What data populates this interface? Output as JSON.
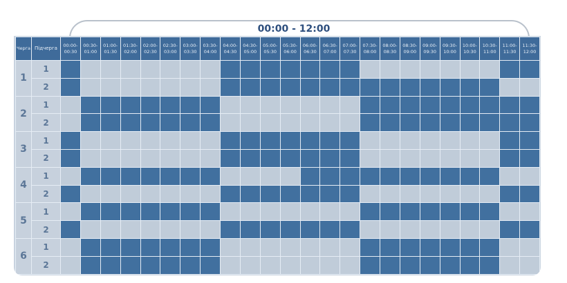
{
  "title": "00:00 - 12:00",
  "headers": {
    "queue": "Черга",
    "subqueue": "Підчерга"
  },
  "time_slots": [
    "00:00-00:30",
    "00:30-01:00",
    "01:00-01:30",
    "01:30-02:00",
    "02:00-02:30",
    "02:30-03:00",
    "03:00-03:30",
    "03:30-04:00",
    "04:00-04:30",
    "04:30-05:00",
    "05:00-05:30",
    "05:30-06:00",
    "06:00-06:30",
    "06:30-07:00",
    "07:00-07:30",
    "07:30-08:00",
    "08:00-08:30",
    "08:30-09:00",
    "09:00-09:30",
    "09:30-10:00",
    "10:00-10:30",
    "10:30-11:00",
    "11:00-11:30",
    "11:30-12:00"
  ],
  "colors": {
    "outage": "#41709f",
    "power_on": "#c0ccd9",
    "header": "#3f6b9a"
  },
  "queues": [
    {
      "label": "1",
      "subqueues": [
        {
          "label": "1",
          "slots": [
            1,
            0,
            0,
            0,
            0,
            0,
            0,
            0,
            1,
            1,
            1,
            1,
            1,
            1,
            1,
            0,
            0,
            0,
            0,
            0,
            0,
            0,
            1,
            1
          ]
        },
        {
          "label": "2",
          "slots": [
            1,
            0,
            0,
            0,
            0,
            0,
            0,
            0,
            1,
            1,
            1,
            1,
            1,
            1,
            1,
            1,
            1,
            1,
            1,
            1,
            1,
            1,
            0,
            0
          ]
        }
      ]
    },
    {
      "label": "2",
      "subqueues": [
        {
          "label": "1",
          "slots": [
            0,
            1,
            1,
            1,
            1,
            1,
            1,
            1,
            0,
            0,
            0,
            0,
            0,
            0,
            0,
            1,
            1,
            1,
            1,
            1,
            1,
            1,
            1,
            1
          ]
        },
        {
          "label": "2",
          "slots": [
            0,
            1,
            1,
            1,
            1,
            1,
            1,
            1,
            0,
            0,
            0,
            0,
            0,
            0,
            0,
            1,
            1,
            1,
            1,
            1,
            1,
            1,
            1,
            1
          ]
        }
      ]
    },
    {
      "label": "3",
      "subqueues": [
        {
          "label": "1",
          "slots": [
            1,
            0,
            0,
            0,
            0,
            0,
            0,
            0,
            1,
            1,
            1,
            1,
            1,
            1,
            1,
            0,
            0,
            0,
            0,
            0,
            0,
            0,
            1,
            1
          ]
        },
        {
          "label": "2",
          "slots": [
            1,
            0,
            0,
            0,
            0,
            0,
            0,
            0,
            1,
            1,
            1,
            1,
            1,
            1,
            1,
            0,
            0,
            0,
            0,
            0,
            0,
            0,
            1,
            1
          ]
        }
      ]
    },
    {
      "label": "4",
      "subqueues": [
        {
          "label": "1",
          "slots": [
            0,
            1,
            1,
            1,
            1,
            1,
            1,
            1,
            0,
            0,
            0,
            0,
            1,
            1,
            1,
            1,
            1,
            1,
            1,
            1,
            1,
            1,
            0,
            0
          ]
        },
        {
          "label": "2",
          "slots": [
            1,
            0,
            0,
            0,
            0,
            0,
            0,
            0,
            1,
            1,
            1,
            1,
            1,
            1,
            1,
            0,
            0,
            0,
            0,
            0,
            0,
            0,
            1,
            1
          ]
        }
      ]
    },
    {
      "label": "5",
      "subqueues": [
        {
          "label": "1",
          "slots": [
            0,
            1,
            1,
            1,
            1,
            1,
            1,
            1,
            0,
            0,
            0,
            0,
            0,
            0,
            0,
            1,
            1,
            1,
            1,
            1,
            1,
            1,
            0,
            0
          ]
        },
        {
          "label": "2",
          "slots": [
            1,
            0,
            0,
            0,
            0,
            0,
            0,
            0,
            1,
            1,
            1,
            1,
            1,
            1,
            1,
            0,
            0,
            0,
            0,
            0,
            0,
            0,
            1,
            1
          ]
        }
      ]
    },
    {
      "label": "6",
      "subqueues": [
        {
          "label": "1",
          "slots": [
            0,
            1,
            1,
            1,
            1,
            1,
            1,
            1,
            0,
            0,
            0,
            0,
            0,
            0,
            0,
            1,
            1,
            1,
            1,
            1,
            1,
            1,
            0,
            0
          ]
        },
        {
          "label": "2",
          "slots": [
            0,
            1,
            1,
            1,
            1,
            1,
            1,
            1,
            0,
            0,
            0,
            0,
            0,
            0,
            0,
            1,
            1,
            1,
            1,
            1,
            1,
            1,
            0,
            0
          ]
        }
      ]
    }
  ]
}
